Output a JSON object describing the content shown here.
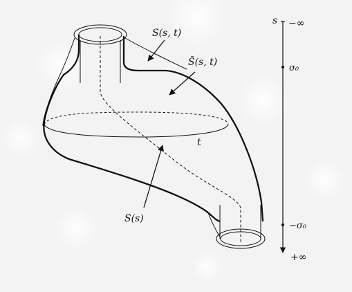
{
  "labels": {
    "s_s_t": "S(s, t)",
    "s_tilde": "S̃(s, t)",
    "s_s": "S(s)",
    "t": "t"
  },
  "axis": {
    "variable": "s",
    "top": "−∞",
    "upper": "σ₀",
    "lower": "−σ₀",
    "bottom": "+∞"
  },
  "colors": {
    "ink": "#111111",
    "background": "#f4f3f3"
  }
}
